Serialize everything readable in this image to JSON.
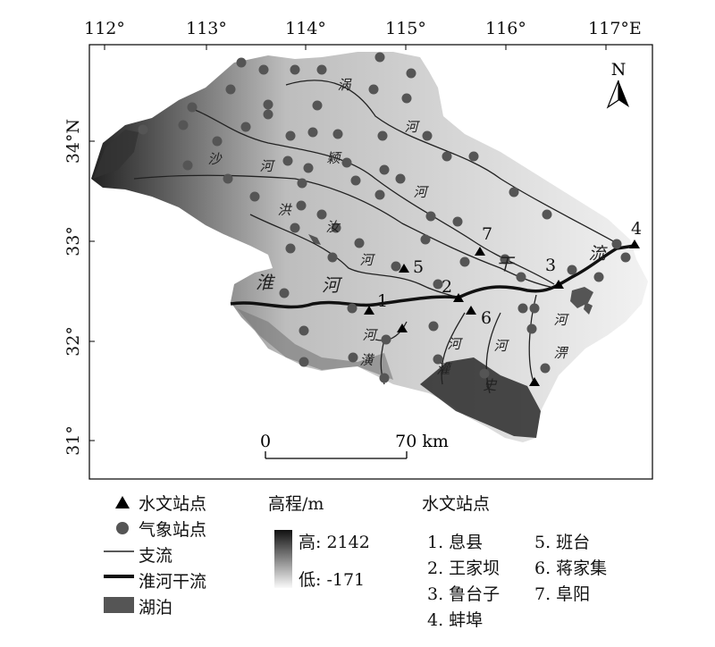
{
  "map": {
    "lon_labels": [
      "112°",
      "113°",
      "114°",
      "115°",
      "116°",
      "117°E"
    ],
    "lat_labels": [
      "34°N",
      "33°",
      "32°",
      "31°"
    ],
    "north_label": "N",
    "scale": {
      "start": "0",
      "end": "70 km"
    },
    "river_labels": {
      "guo1": "涡",
      "guo2": "河",
      "sha1": "沙",
      "sha2": "河",
      "ying1": "颖",
      "ying2": "河",
      "hong1": "洪",
      "ru1": "汝",
      "ru2": "河",
      "huai1": "淮",
      "huai2": "河",
      "gan": "干",
      "liu": "流",
      "huang1": "河",
      "huang2": "潢",
      "guan1": "河",
      "guan2": "灌",
      "shi1": "河",
      "shi2": "史",
      "pi1": "河",
      "pi2": "淠"
    },
    "station_numbers": [
      "1",
      "2",
      "3",
      "4",
      "5",
      "6",
      "7"
    ]
  },
  "legend": {
    "hydro": "水文站点",
    "met": "气象站点",
    "tributary": "支流",
    "mainstream": "淮河干流",
    "lake": "湖泊",
    "elev_title": "高程/m",
    "elev_high": "高: 2142",
    "elev_low": "低: -171",
    "stations_title": "水文站点",
    "stations": [
      "1. 息县",
      "2. 王家坝",
      "3. 鲁台子",
      "4. 蚌埠",
      "5. 班台",
      "6. 蒋家集",
      "7. 阜阳"
    ]
  },
  "colors": {
    "frame": "#000000",
    "ink": "#222222",
    "lake": "#555555"
  }
}
